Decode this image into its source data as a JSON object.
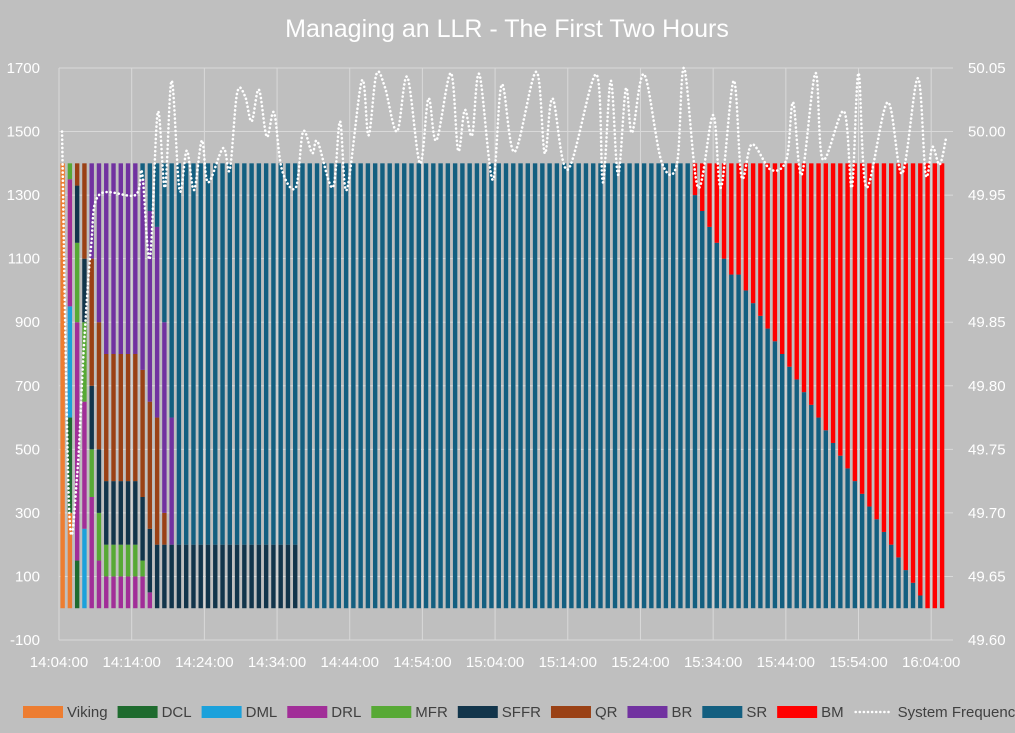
{
  "chart_data": {
    "type": "bar",
    "stacked": true,
    "title": "Managing an LLR - The First Two Hours",
    "xlabel": "",
    "ylabel": "",
    "y2label": "",
    "xlim": [
      "14:04:00",
      "16:07:00"
    ],
    "ylim": [
      -100,
      1700
    ],
    "y2lim": [
      49.6,
      50.05
    ],
    "grid": true,
    "legend_position": "bottom",
    "x_ticks": [
      "14:04:00",
      "14:14:00",
      "14:24:00",
      "14:34:00",
      "14:44:00",
      "14:54:00",
      "15:04:00",
      "15:14:00",
      "15:24:00",
      "15:34:00",
      "15:44:00",
      "15:54:00",
      "16:04:00"
    ],
    "y_ticks": [
      "-100",
      "100",
      "300",
      "500",
      "700",
      "900",
      "1100",
      "1300",
      "1500",
      "1700"
    ],
    "y2_ticks": [
      "49.60",
      "49.65",
      "49.70",
      "49.75",
      "49.80",
      "49.85",
      "49.90",
      "49.95",
      "50.00",
      "50.05"
    ],
    "series": [
      {
        "name": "Viking",
        "color": "#ED7D31"
      },
      {
        "name": "DCL",
        "color": "#1E6B2E"
      },
      {
        "name": "DML",
        "color": "#1BA1DB"
      },
      {
        "name": "DRL",
        "color": "#A12E98"
      },
      {
        "name": "MFR",
        "color": "#57A935"
      },
      {
        "name": "SFFR",
        "color": "#12354B"
      },
      {
        "name": "QR",
        "color": "#9A4115"
      },
      {
        "name": "BR",
        "color": "#7132A0"
      },
      {
        "name": "SR",
        "color": "#135F80"
      },
      {
        "name": "BM",
        "color": "#FF0000"
      }
    ],
    "bars": [
      {
        "t": "14:04:30",
        "Viking": 1400
      },
      {
        "t": "14:05:30",
        "Viking": 300,
        "DCL": 300,
        "DML": 350,
        "DRL": 400,
        "MFR": 50
      },
      {
        "t": "14:06:30",
        "DCL": 150,
        "DRL": 750,
        "MFR": 250,
        "SFFR": 180,
        "QR": 70
      },
      {
        "t": "14:07:30",
        "DML": 250,
        "DRL": 400,
        "MFR": 250,
        "SFFR": 200,
        "QR": 300
      },
      {
        "t": "14:08:30",
        "DRL": 350,
        "MFR": 150,
        "SFFR": 200,
        "QR": 400,
        "BR": 300
      },
      {
        "t": "14:09:30",
        "DRL": 150,
        "MFR": 150,
        "SFFR": 200,
        "QR": 400,
        "BR": 500
      },
      {
        "t": "14:10:30",
        "DRL": 100,
        "MFR": 100,
        "SFFR": 200,
        "QR": 400,
        "BR": 600
      },
      {
        "t": "14:11:30",
        "DRL": 100,
        "MFR": 100,
        "SFFR": 200,
        "QR": 400,
        "BR": 600
      },
      {
        "t": "14:12:30",
        "DRL": 100,
        "MFR": 100,
        "SFFR": 200,
        "QR": 400,
        "BR": 600
      },
      {
        "t": "14:13:30",
        "DRL": 100,
        "MFR": 100,
        "SFFR": 200,
        "QR": 400,
        "BR": 600
      },
      {
        "t": "14:14:30",
        "DRL": 100,
        "MFR": 100,
        "SFFR": 200,
        "QR": 400,
        "BR": 600
      },
      {
        "t": "14:15:30",
        "DRL": 100,
        "MFR": 50,
        "SFFR": 200,
        "QR": 400,
        "BR": 600,
        "SR": 50
      },
      {
        "t": "14:16:30",
        "DRL": 50,
        "SFFR": 200,
        "QR": 400,
        "BR": 600,
        "SR": 150
      },
      {
        "t": "14:17:30",
        "SFFR": 200,
        "QR": 400,
        "BR": 600,
        "SR": 200
      },
      {
        "t": "14:18:30",
        "SFFR": 200,
        "QR": 100,
        "BR": 600,
        "SR": 500
      },
      {
        "t": "14:19:30",
        "SFFR": 200,
        "BR": 400,
        "SR": 800
      },
      {
        "t": "14:20:30",
        "SFFR": 200,
        "SR": 1200
      },
      {
        "t": "14:21:30",
        "SFFR": 200,
        "SR": 1200
      },
      {
        "t": "14:22:30",
        "SFFR": 200,
        "SR": 1200
      },
      {
        "t": "14:23:30",
        "SFFR": 200,
        "SR": 1200
      },
      {
        "t": "14:24:30",
        "SFFR": 200,
        "SR": 1200
      },
      {
        "t": "14:25:30",
        "SFFR": 200,
        "SR": 1200
      },
      {
        "t": "14:26:30",
        "SFFR": 200,
        "SR": 1200
      },
      {
        "t": "14:27:30",
        "SFFR": 200,
        "SR": 1200
      },
      {
        "t": "14:28:30",
        "SFFR": 200,
        "SR": 1200
      },
      {
        "t": "14:29:30",
        "SFFR": 200,
        "SR": 1200
      },
      {
        "t": "14:30:30",
        "SFFR": 200,
        "SR": 1200
      },
      {
        "t": "14:31:30",
        "SFFR": 200,
        "SR": 1200
      },
      {
        "t": "14:32:30",
        "SFFR": 200,
        "SR": 1200
      },
      {
        "t": "14:33:30",
        "SFFR": 200,
        "SR": 1200
      },
      {
        "t": "14:34:30",
        "SFFR": 200,
        "SR": 1200
      },
      {
        "t": "14:35:30",
        "SFFR": 200,
        "SR": 1200
      },
      {
        "t": "14:36:30",
        "SFFR": 200,
        "SR": 1200
      },
      {
        "t": "14:37:30",
        "SR": 1400
      },
      {
        "t": "14:38:30",
        "SR": 1400
      },
      {
        "t": "14:39:30",
        "SR": 1400
      },
      {
        "t": "14:40:30",
        "SR": 1400
      },
      {
        "t": "14:41:30",
        "SR": 1400
      },
      {
        "t": "14:42:30",
        "SR": 1400
      },
      {
        "t": "14:43:30",
        "SR": 1400
      },
      {
        "t": "14:44:30",
        "SR": 1400
      },
      {
        "t": "14:45:30",
        "SR": 1400
      },
      {
        "t": "14:46:30",
        "SR": 1400
      },
      {
        "t": "14:47:30",
        "SR": 1400
      },
      {
        "t": "14:48:30",
        "SR": 1400
      },
      {
        "t": "14:49:30",
        "SR": 1400
      },
      {
        "t": "14:50:30",
        "SR": 1400
      },
      {
        "t": "14:51:30",
        "SR": 1400
      },
      {
        "t": "14:52:30",
        "SR": 1400
      },
      {
        "t": "14:53:30",
        "SR": 1400
      },
      {
        "t": "14:54:30",
        "SR": 1400
      },
      {
        "t": "14:55:30",
        "SR": 1400
      },
      {
        "t": "14:56:30",
        "SR": 1400
      },
      {
        "t": "14:57:30",
        "SR": 1400
      },
      {
        "t": "14:58:30",
        "SR": 1400
      },
      {
        "t": "14:59:30",
        "SR": 1400
      },
      {
        "t": "15:00:30",
        "SR": 1400
      },
      {
        "t": "15:01:30",
        "SR": 1400
      },
      {
        "t": "15:02:30",
        "SR": 1400
      },
      {
        "t": "15:03:30",
        "SR": 1400
      },
      {
        "t": "15:04:30",
        "SR": 1400
      },
      {
        "t": "15:05:30",
        "SR": 1400
      },
      {
        "t": "15:06:30",
        "SR": 1400
      },
      {
        "t": "15:07:30",
        "SR": 1400
      },
      {
        "t": "15:08:30",
        "SR": 1400
      },
      {
        "t": "15:09:30",
        "SR": 1400
      },
      {
        "t": "15:10:30",
        "SR": 1400
      },
      {
        "t": "15:11:30",
        "SR": 1400
      },
      {
        "t": "15:12:30",
        "SR": 1400
      },
      {
        "t": "15:13:30",
        "SR": 1400
      },
      {
        "t": "15:14:30",
        "SR": 1400
      },
      {
        "t": "15:15:30",
        "SR": 1400
      },
      {
        "t": "15:16:30",
        "SR": 1400
      },
      {
        "t": "15:17:30",
        "SR": 1400
      },
      {
        "t": "15:18:30",
        "SR": 1400
      },
      {
        "t": "15:19:30",
        "SR": 1400
      },
      {
        "t": "15:20:30",
        "SR": 1400
      },
      {
        "t": "15:21:30",
        "SR": 1400
      },
      {
        "t": "15:22:30",
        "SR": 1400
      },
      {
        "t": "15:23:30",
        "SR": 1400
      },
      {
        "t": "15:24:30",
        "SR": 1400
      },
      {
        "t": "15:25:30",
        "SR": 1400
      },
      {
        "t": "15:26:30",
        "SR": 1400
      },
      {
        "t": "15:27:30",
        "SR": 1400
      },
      {
        "t": "15:28:30",
        "SR": 1400
      },
      {
        "t": "15:29:30",
        "SR": 1400
      },
      {
        "t": "15:30:30",
        "SR": 1400
      },
      {
        "t": "15:31:30",
        "SR": 1300,
        "BM": 100
      },
      {
        "t": "15:32:30",
        "SR": 1250,
        "BM": 150
      },
      {
        "t": "15:33:30",
        "SR": 1200,
        "BM": 200
      },
      {
        "t": "15:34:30",
        "SR": 1150,
        "BM": 250
      },
      {
        "t": "15:35:30",
        "SR": 1100,
        "BM": 300
      },
      {
        "t": "15:36:30",
        "SR": 1050,
        "BM": 350
      },
      {
        "t": "15:37:30",
        "SR": 1050,
        "BM": 350
      },
      {
        "t": "15:38:30",
        "SR": 1000,
        "BM": 400
      },
      {
        "t": "15:39:30",
        "SR": 960,
        "BM": 440
      },
      {
        "t": "15:40:30",
        "SR": 920,
        "BM": 480
      },
      {
        "t": "15:41:30",
        "SR": 880,
        "BM": 520
      },
      {
        "t": "15:42:30",
        "SR": 840,
        "BM": 560
      },
      {
        "t": "15:43:30",
        "SR": 800,
        "BM": 600
      },
      {
        "t": "15:44:30",
        "SR": 760,
        "BM": 640
      },
      {
        "t": "15:45:30",
        "SR": 720,
        "BM": 680
      },
      {
        "t": "15:46:30",
        "SR": 680,
        "BM": 720
      },
      {
        "t": "15:47:30",
        "SR": 640,
        "BM": 760
      },
      {
        "t": "15:48:30",
        "SR": 600,
        "BM": 800
      },
      {
        "t": "15:49:30",
        "SR": 560,
        "BM": 840
      },
      {
        "t": "15:50:30",
        "SR": 520,
        "BM": 880
      },
      {
        "t": "15:51:30",
        "SR": 480,
        "BM": 920
      },
      {
        "t": "15:52:30",
        "SR": 440,
        "BM": 960
      },
      {
        "t": "15:53:30",
        "SR": 400,
        "BM": 1000
      },
      {
        "t": "15:54:30",
        "SR": 360,
        "BM": 1040
      },
      {
        "t": "15:55:30",
        "SR": 320,
        "BM": 1080
      },
      {
        "t": "15:56:30",
        "SR": 280,
        "BM": 1120
      },
      {
        "t": "15:57:30",
        "SR": 240,
        "BM": 1160
      },
      {
        "t": "15:58:30",
        "SR": 200,
        "BM": 1200
      },
      {
        "t": "15:59:30",
        "SR": 160,
        "BM": 1240
      },
      {
        "t": "16:00:30",
        "SR": 120,
        "BM": 1280
      },
      {
        "t": "16:01:30",
        "SR": 80,
        "BM": 1320
      },
      {
        "t": "16:02:30",
        "SR": 40,
        "BM": 1360
      },
      {
        "t": "16:03:30",
        "BM": 1400
      },
      {
        "t": "16:04:30",
        "BM": 1400
      },
      {
        "t": "16:05:30",
        "BM": 1400
      }
    ],
    "line_series": {
      "name": "System Frequency",
      "color": "#FFFFFF",
      "axis": "right",
      "points": [
        [
          "14:04:25",
          50.0
        ],
        [
          "14:05:25",
          49.7
        ],
        [
          "14:06:30",
          49.73
        ],
        [
          "14:07:25",
          49.83
        ],
        [
          "14:08:25",
          49.91
        ],
        [
          "14:09:30",
          49.95
        ],
        [
          "14:14:30",
          49.95
        ],
        [
          "14:15:25",
          49.968
        ],
        [
          "14:16:30",
          49.9
        ],
        [
          "14:17:35",
          50.015
        ],
        [
          "14:18:35",
          49.956
        ],
        [
          "14:19:30",
          50.04
        ],
        [
          "14:20:35",
          49.954
        ],
        [
          "14:21:35",
          49.985
        ],
        [
          "14:22:35",
          49.954
        ],
        [
          "14:23:40",
          49.993
        ],
        [
          "14:24:30",
          49.96
        ],
        [
          "14:26:35",
          49.987
        ],
        [
          "14:27:30",
          49.97
        ],
        [
          "14:28:30",
          50.03
        ],
        [
          "14:29:35",
          50.028
        ],
        [
          "14:30:30",
          50.008
        ],
        [
          "14:31:30",
          50.033
        ],
        [
          "14:32:35",
          49.996
        ],
        [
          "14:33:35",
          50.015
        ],
        [
          "14:34:40",
          49.97
        ],
        [
          "14:36:35",
          49.956
        ],
        [
          "14:37:35",
          50.0
        ],
        [
          "14:38:50",
          49.983
        ],
        [
          "14:39:35",
          49.992
        ],
        [
          "14:41:40",
          49.956
        ],
        [
          "14:42:40",
          50.008
        ],
        [
          "14:43:35",
          49.954
        ],
        [
          "14:45:40",
          50.04
        ],
        [
          "14:46:35",
          49.997
        ],
        [
          "14:47:40",
          50.045
        ],
        [
          "14:48:50",
          50.035
        ],
        [
          "14:50:30",
          50.0
        ],
        [
          "14:51:55",
          50.043
        ],
        [
          "14:53:40",
          49.975
        ],
        [
          "14:54:50",
          50.026
        ],
        [
          "14:55:55",
          49.993
        ],
        [
          "14:57:55",
          50.046
        ],
        [
          "14:58:55",
          49.985
        ],
        [
          "14:59:50",
          50.017
        ],
        [
          "15:00:50",
          49.997
        ],
        [
          "15:01:50",
          50.045
        ],
        [
          "15:03:40",
          49.962
        ],
        [
          "15:04:55",
          50.037
        ],
        [
          "15:06:40",
          49.984
        ],
        [
          "15:09:40",
          50.047
        ],
        [
          "15:10:50",
          49.983
        ],
        [
          "15:11:55",
          50.026
        ],
        [
          "15:14:00",
          49.97
        ],
        [
          "15:17:55",
          50.045
        ],
        [
          "15:18:50",
          49.96
        ],
        [
          "15:19:55",
          50.04
        ],
        [
          "15:20:55",
          49.966
        ],
        [
          "15:22:00",
          50.034
        ],
        [
          "15:22:50",
          49.999
        ],
        [
          "15:24:30",
          50.045
        ],
        [
          "15:26:55",
          49.976
        ],
        [
          "15:29:00",
          49.974
        ],
        [
          "15:30:00",
          50.05
        ],
        [
          "15:31:55",
          49.956
        ],
        [
          "15:34:00",
          50.013
        ],
        [
          "15:35:05",
          49.956
        ],
        [
          "15:36:50",
          50.04
        ],
        [
          "15:37:55",
          49.964
        ],
        [
          "15:39:20",
          49.99
        ],
        [
          "15:41:55",
          49.97
        ],
        [
          "15:44:05",
          49.978
        ],
        [
          "15:45:00",
          50.023
        ],
        [
          "15:46:10",
          49.966
        ],
        [
          "15:48:05",
          50.046
        ],
        [
          "15:49:05",
          49.978
        ],
        [
          "15:52:00",
          50.016
        ],
        [
          "15:53:05",
          49.956
        ],
        [
          "15:54:00",
          50.046
        ],
        [
          "15:55:05",
          49.956
        ],
        [
          "15:58:00",
          50.023
        ],
        [
          "16:00:00",
          49.967
        ],
        [
          "16:02:10",
          50.042
        ],
        [
          "16:03:15",
          49.966
        ],
        [
          "16:04:10",
          49.988
        ],
        [
          "16:05:10",
          49.974
        ],
        [
          "16:06:05",
          49.996
        ]
      ]
    }
  }
}
